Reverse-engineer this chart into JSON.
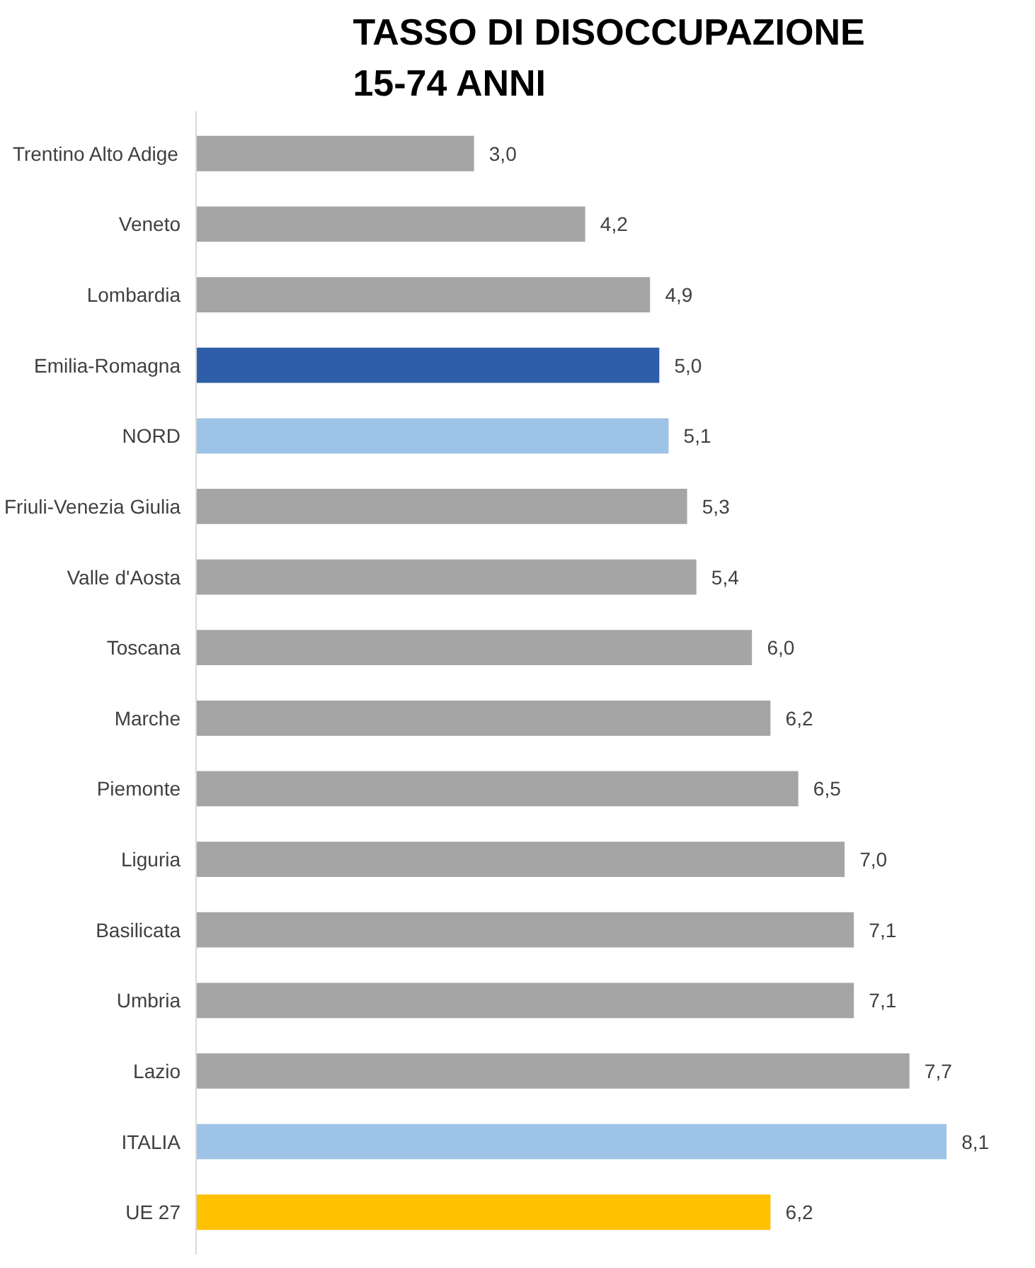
{
  "chart_data": {
    "type": "bar",
    "orientation": "horizontal",
    "title": "TASSO DI DISOCCUPAZIONE\n15-74 ANNI",
    "categories": [
      "Trentino Alto Adige",
      "Veneto",
      "Lombardia",
      "Emilia-Romagna",
      "NORD",
      "Friuli-Venezia Giulia",
      "Valle d'Aosta",
      "Toscana",
      "Marche",
      "Piemonte",
      "Liguria",
      "Basilicata",
      "Umbria",
      "Lazio",
      "ITALIA",
      "UE 27"
    ],
    "values": [
      3.0,
      4.2,
      4.9,
      5.0,
      5.1,
      5.3,
      5.4,
      6.0,
      6.2,
      6.5,
      7.0,
      7.1,
      7.1,
      7.7,
      8.1,
      6.2
    ],
    "value_labels": [
      "3,0",
      "4,2",
      "4,9",
      "5,0",
      "5,1",
      "5,3",
      "5,4",
      "6,0",
      "6,2",
      "6,5",
      "7,0",
      "7,1",
      "7,1",
      "7,7",
      "8,1",
      "6,2"
    ],
    "colors": [
      "#a5a5a5",
      "#a5a5a5",
      "#a5a5a5",
      "#2e5ea8",
      "#9dc3e6",
      "#a5a5a5",
      "#a5a5a5",
      "#a5a5a5",
      "#a5a5a5",
      "#a5a5a5",
      "#a5a5a5",
      "#a5a5a5",
      "#a5a5a5",
      "#a5a5a5",
      "#9dc3e6",
      "#ffc000"
    ],
    "grid": false
  }
}
